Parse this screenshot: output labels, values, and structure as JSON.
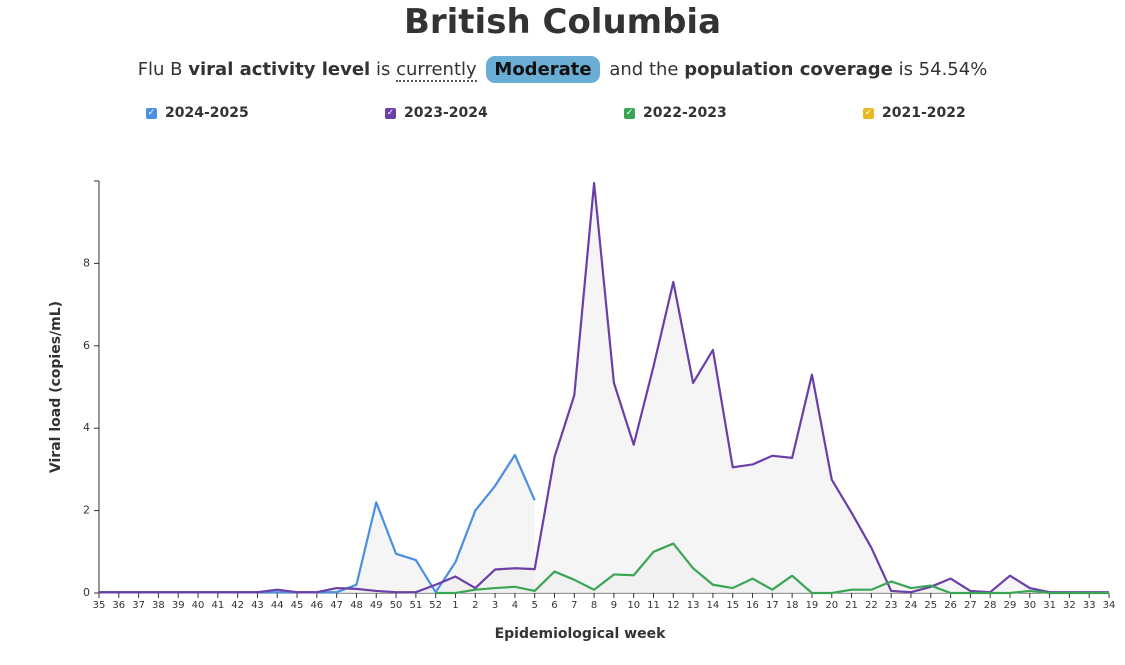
{
  "chart_data": {
    "type": "line",
    "title": "British Columbia",
    "subtitle_parts": [
      "Flu B",
      "viral activity level",
      "is",
      "currently",
      "Moderate",
      "and the",
      "population coverage",
      "is 54.54%"
    ],
    "x_label": "Epidemiological week",
    "y_label": "Viral load (copies/mL)",
    "categories": [
      "35",
      "36",
      "37",
      "38",
      "39",
      "40",
      "41",
      "42",
      "43",
      "44",
      "45",
      "46",
      "47",
      "48",
      "49",
      "50",
      "51",
      "52",
      "1",
      "2",
      "3",
      "4",
      "5",
      "6",
      "7",
      "8",
      "9",
      "10",
      "11",
      "12",
      "13",
      "14",
      "15",
      "16",
      "17",
      "18",
      "19",
      "20",
      "21",
      "22",
      "23",
      "24",
      "25",
      "26",
      "27",
      "28",
      "29",
      "30",
      "31",
      "32",
      "33",
      "34"
    ],
    "ylim": [
      0,
      10
    ],
    "yticks": [
      0,
      2,
      4,
      6,
      8
    ],
    "series": [
      {
        "name": "2024-2025",
        "color": "#4a8fe0",
        "values": [
          0.02,
          0.02,
          0.02,
          0.02,
          0.02,
          0.02,
          0.02,
          0.02,
          0.02,
          0.02,
          0.02,
          0.02,
          0.02,
          0.2,
          2.2,
          0.95,
          0.8,
          0.02,
          0.75,
          2.0,
          2.6,
          3.35,
          2.25,
          null,
          null,
          null,
          null,
          null,
          null,
          null,
          null,
          null,
          null,
          null,
          null,
          null,
          null,
          null,
          null,
          null,
          null,
          null,
          null,
          null,
          null,
          null,
          null,
          null,
          null,
          null,
          null,
          null
        ]
      },
      {
        "name": "2023-2024",
        "color": "#6a3fa8",
        "values": [
          0.02,
          0.02,
          0.02,
          0.02,
          0.02,
          0.02,
          0.02,
          0.02,
          0.02,
          0.08,
          0.02,
          0.02,
          0.12,
          0.1,
          0.05,
          0.02,
          0.02,
          0.2,
          0.4,
          0.12,
          0.57,
          0.6,
          0.58,
          3.3,
          4.8,
          9.95,
          5.1,
          3.6,
          5.5,
          7.55,
          5.1,
          5.9,
          3.05,
          3.12,
          3.33,
          3.28,
          5.3,
          2.75,
          1.95,
          1.1,
          0.05,
          0.02,
          0.15,
          0.35,
          0.05,
          0.02,
          0.42,
          0.12,
          0.02,
          0.02,
          0.02,
          0.02
        ]
      },
      {
        "name": "2022-2023",
        "color": "#3aa655",
        "values": [
          null,
          null,
          null,
          null,
          null,
          null,
          null,
          null,
          null,
          null,
          null,
          null,
          null,
          null,
          null,
          null,
          null,
          0.0,
          0.0,
          0.08,
          0.12,
          0.15,
          0.05,
          0.52,
          0.32,
          0.08,
          0.45,
          0.43,
          1.0,
          1.2,
          0.6,
          0.2,
          0.12,
          0.35,
          0.08,
          0.42,
          0.0,
          0.0,
          0.08,
          0.08,
          0.28,
          0.12,
          0.18,
          0.0,
          0.0,
          0.0,
          0.0,
          0.05,
          0.0,
          0.0,
          0.0,
          0.0
        ]
      },
      {
        "name": "2021-2022",
        "color": "#e8b923",
        "values": [
          null,
          null,
          null,
          null,
          null,
          null,
          null,
          null,
          null,
          null,
          null,
          null,
          null,
          null,
          null,
          null,
          null,
          null,
          null,
          null,
          null,
          null,
          null,
          null,
          null,
          null,
          null,
          null,
          null,
          null,
          null,
          null,
          null,
          null,
          null,
          null,
          null,
          null,
          null,
          null,
          null,
          null,
          null,
          null,
          null,
          null,
          null,
          null,
          null,
          null,
          null,
          null
        ]
      }
    ]
  }
}
